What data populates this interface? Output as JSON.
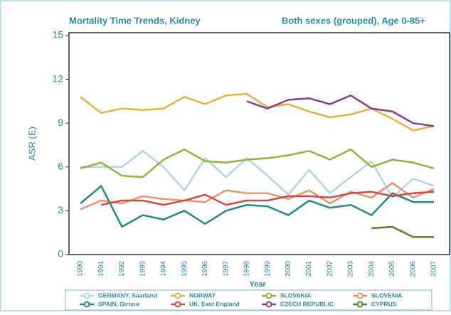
{
  "chart_data": {
    "type": "line",
    "title": "Mortality Time Trends, Kidney",
    "subtitle": "Both sexes (grouped), Age 0-85+",
    "x_label": "Year",
    "y_label": "ASR (E)",
    "categories": [
      "1990",
      "1991",
      "1992",
      "1993",
      "1994",
      "1995",
      "1996",
      "1997",
      "1998",
      "1999",
      "2000",
      "2001",
      "2002",
      "2003",
      "2004",
      "2005",
      "2006",
      "2007"
    ],
    "ylim": [
      0,
      15
    ],
    "yticks": [
      0,
      3,
      6,
      9,
      12,
      15
    ],
    "series": [
      {
        "name": "GERMANY, Saarland",
        "color": "#b3d3e6",
        "values": [
          6.0,
          6.0,
          6.0,
          7.1,
          6.0,
          4.4,
          6.6,
          5.3,
          6.6,
          5.4,
          4.1,
          5.8,
          4.2,
          5.3,
          6.4,
          3.9,
          5.2,
          4.7
        ]
      },
      {
        "name": "NORWAY",
        "color": "#e8b040",
        "values": [
          10.8,
          9.7,
          10.0,
          9.9,
          10.0,
          10.8,
          10.3,
          10.9,
          11.0,
          10.1,
          10.3,
          9.8,
          9.4,
          9.6,
          10.0,
          9.3,
          8.5,
          8.8
        ]
      },
      {
        "name": "SLOVAKIA",
        "color": "#8cb43c",
        "values": [
          5.9,
          6.3,
          5.4,
          5.3,
          6.5,
          7.2,
          6.4,
          6.3,
          6.5,
          6.6,
          6.8,
          7.1,
          6.5,
          7.2,
          6.0,
          6.5,
          6.3,
          5.9
        ]
      },
      {
        "name": "SLOVENIA",
        "color": "#e89468",
        "values": [
          3.1,
          3.7,
          3.5,
          4.0,
          3.8,
          3.7,
          3.6,
          4.4,
          4.2,
          4.2,
          3.8,
          4.4,
          3.5,
          4.3,
          3.9,
          4.9,
          3.9,
          4.5
        ]
      },
      {
        "name": "SPAIN, Girona",
        "color": "#1e8a80",
        "values": [
          3.5,
          4.7,
          1.9,
          2.7,
          2.4,
          3.0,
          2.1,
          3.0,
          3.4,
          3.3,
          2.7,
          3.7,
          3.2,
          3.4,
          2.7,
          4.2,
          3.6,
          3.6
        ]
      },
      {
        "name": "UK, East England",
        "color": "#d04848",
        "values": [
          null,
          3.4,
          3.7,
          3.7,
          3.4,
          3.7,
          4.1,
          3.4,
          3.7,
          3.7,
          4.0,
          4.0,
          3.9,
          4.2,
          4.3,
          4.0,
          4.2,
          4.3
        ]
      },
      {
        "name": "CZECH REPUBLIC",
        "color": "#8a3c8c",
        "values": [
          null,
          null,
          null,
          null,
          null,
          null,
          null,
          null,
          10.5,
          10.0,
          10.6,
          10.7,
          10.3,
          10.9,
          10.0,
          9.8,
          9.0,
          8.8
        ]
      },
      {
        "name": "CYPRUS",
        "color": "#5c7c24",
        "values": [
          null,
          null,
          null,
          null,
          null,
          null,
          null,
          null,
          null,
          null,
          null,
          null,
          null,
          null,
          1.8,
          1.9,
          1.2,
          1.2
        ]
      }
    ]
  }
}
